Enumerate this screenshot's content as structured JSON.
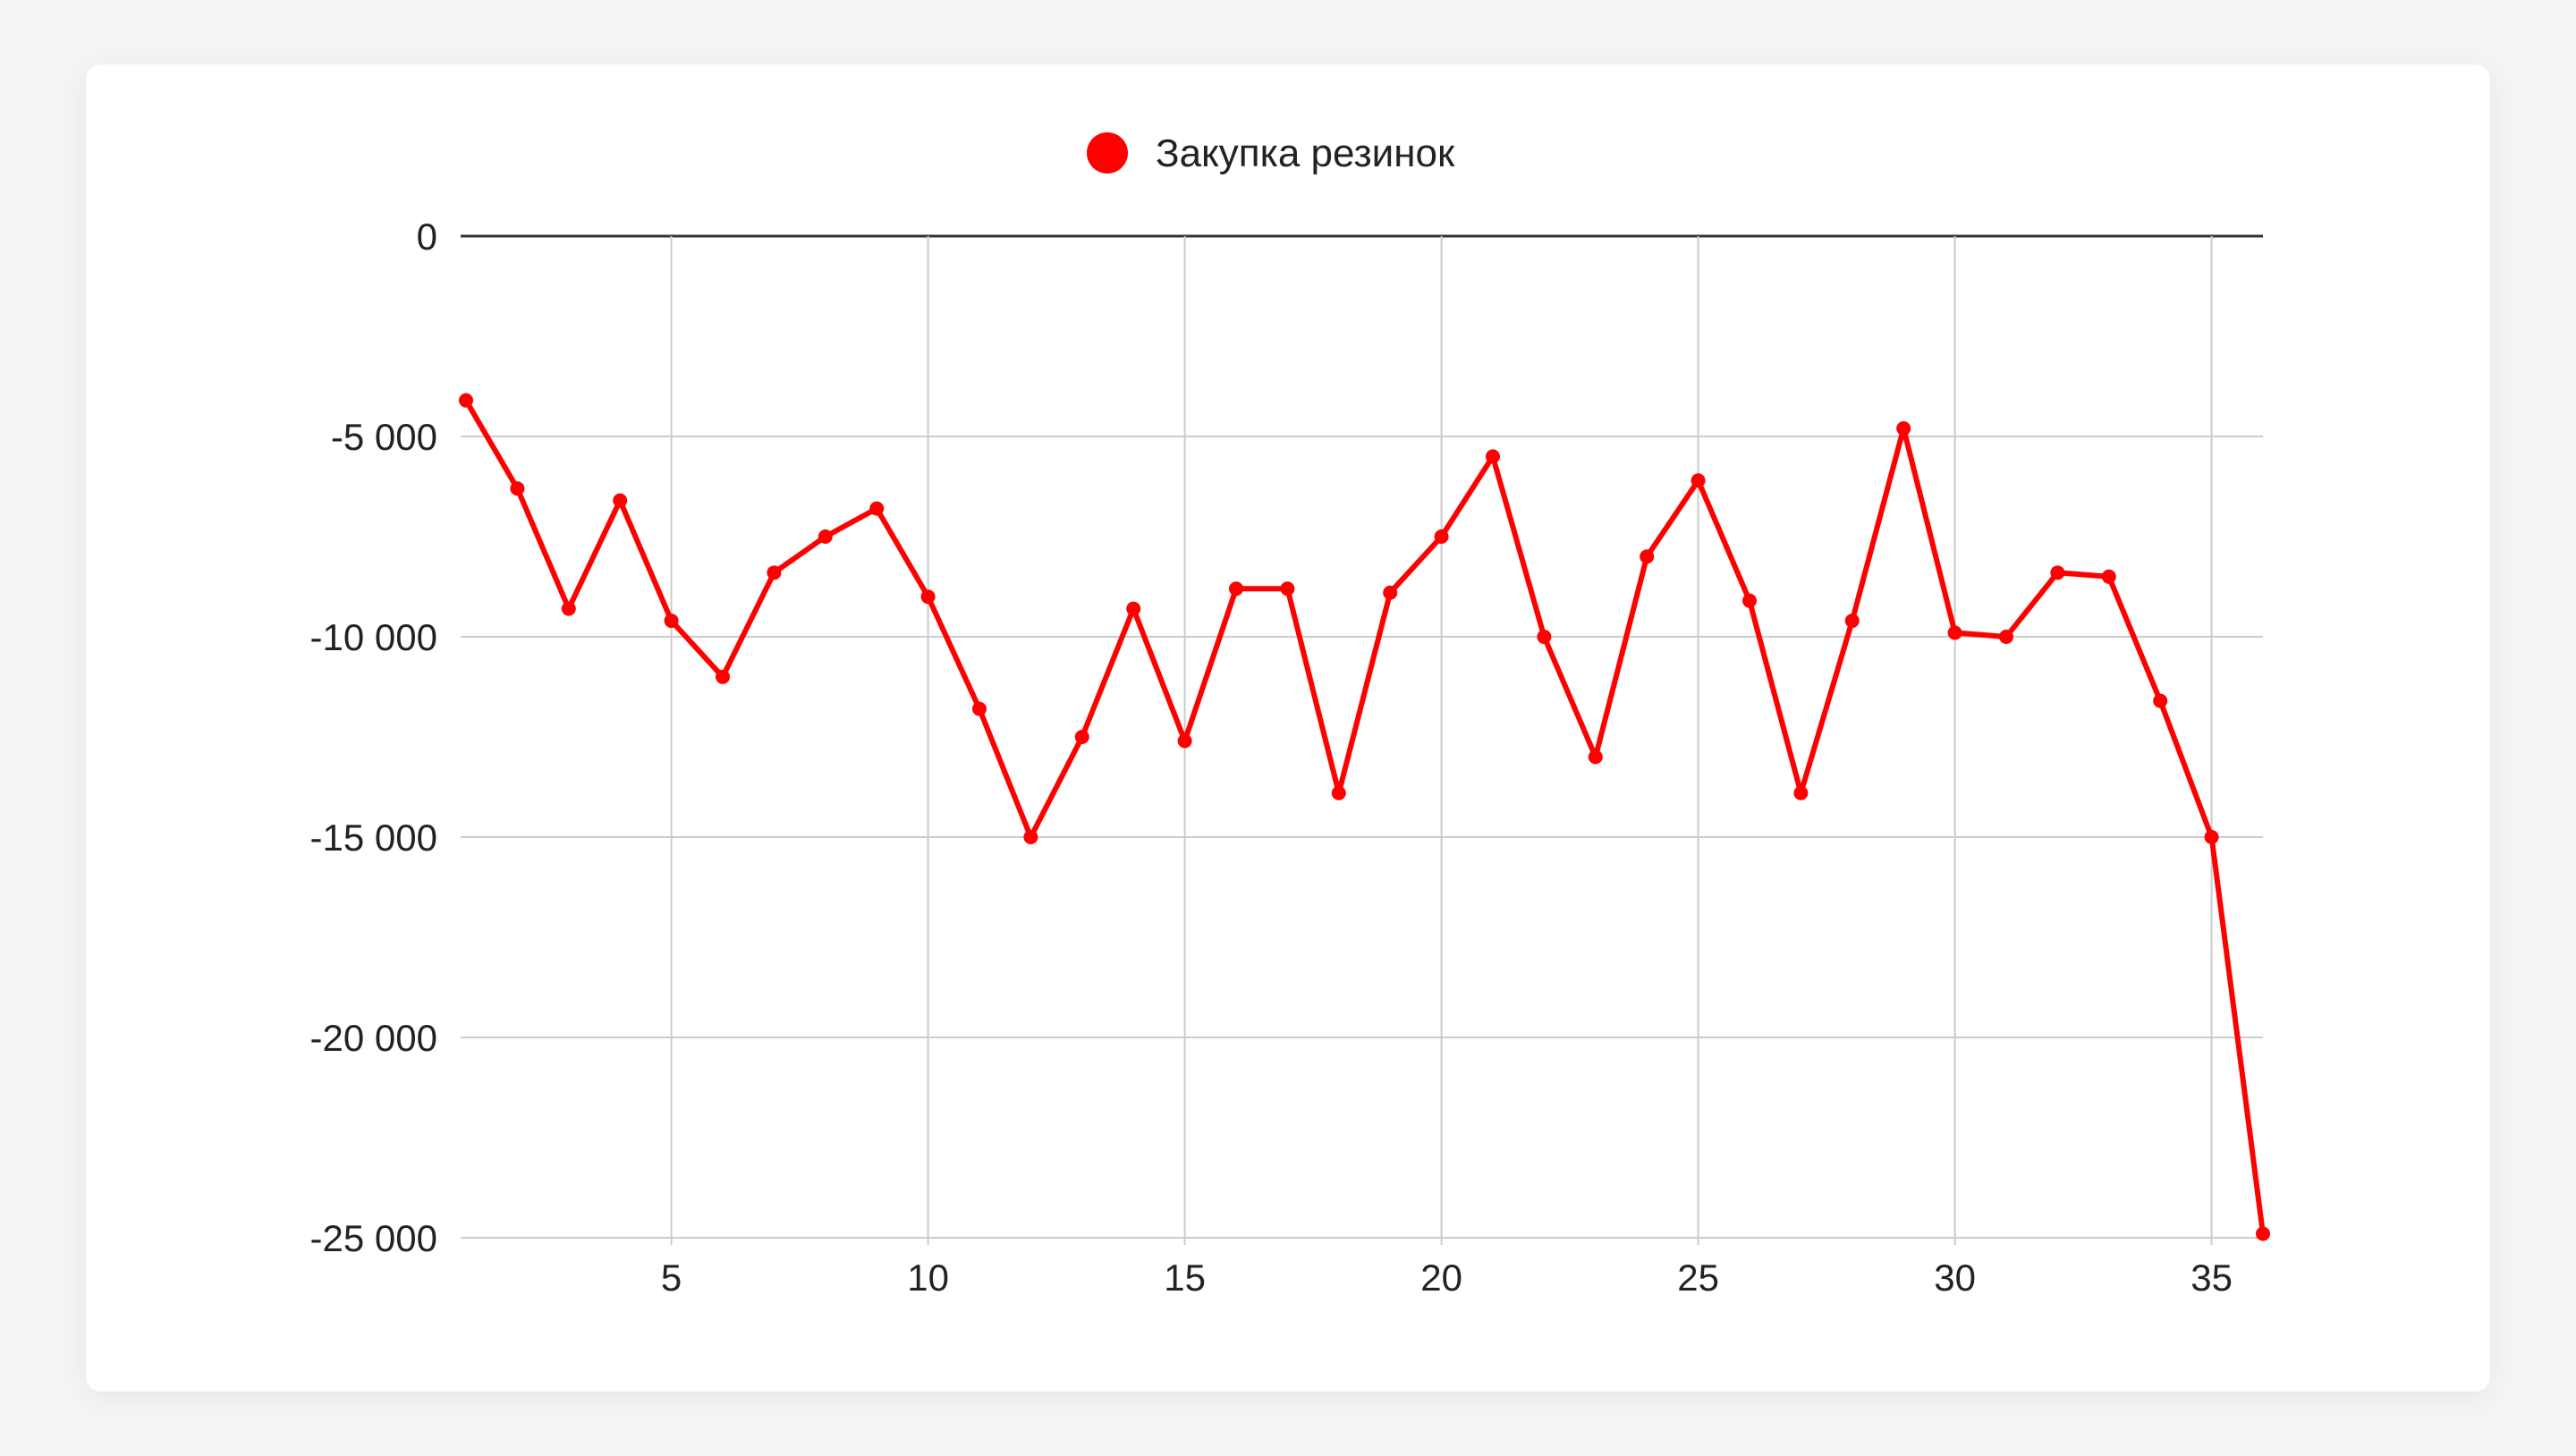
{
  "chart_data": {
    "type": "line",
    "title": "",
    "xlabel": "",
    "ylabel": "",
    "xlim": [
      1,
      36
    ],
    "ylim": [
      -25000,
      0
    ],
    "x_ticks": [
      5,
      10,
      15,
      20,
      25,
      30,
      35
    ],
    "y_ticks": [
      0,
      -5000,
      -10000,
      -15000,
      -20000,
      -25000
    ],
    "x_tick_labels": [
      "5",
      "10",
      "15",
      "20",
      "25",
      "30",
      "35"
    ],
    "y_tick_labels": [
      "0",
      "-5 000",
      "-10 000",
      "-15 000",
      "-20 000",
      "-25 000"
    ],
    "grid": true,
    "legend_position": "top-center",
    "series": [
      {
        "name": "Закупка резинок",
        "color": "#ff0000",
        "x": [
          1,
          2,
          3,
          4,
          5,
          6,
          7,
          8,
          9,
          10,
          11,
          12,
          13,
          14,
          15,
          16,
          17,
          18,
          19,
          20,
          21,
          22,
          23,
          24,
          25,
          26,
          27,
          28,
          29,
          30,
          31,
          32,
          33,
          34,
          35,
          36
        ],
        "values": [
          -4100,
          -6300,
          -9300,
          -6600,
          -9600,
          -11000,
          -8400,
          -7500,
          -6800,
          -9000,
          -11800,
          -15000,
          -12500,
          -9300,
          -12600,
          -8800,
          -8800,
          -13900,
          -8900,
          -7500,
          -5500,
          -10000,
          -13000,
          -8000,
          -6100,
          -9100,
          -13900,
          -9600,
          -4800,
          -9900,
          -10000,
          -8400,
          -8500,
          -11600,
          -15000,
          -24900
        ]
      }
    ]
  }
}
